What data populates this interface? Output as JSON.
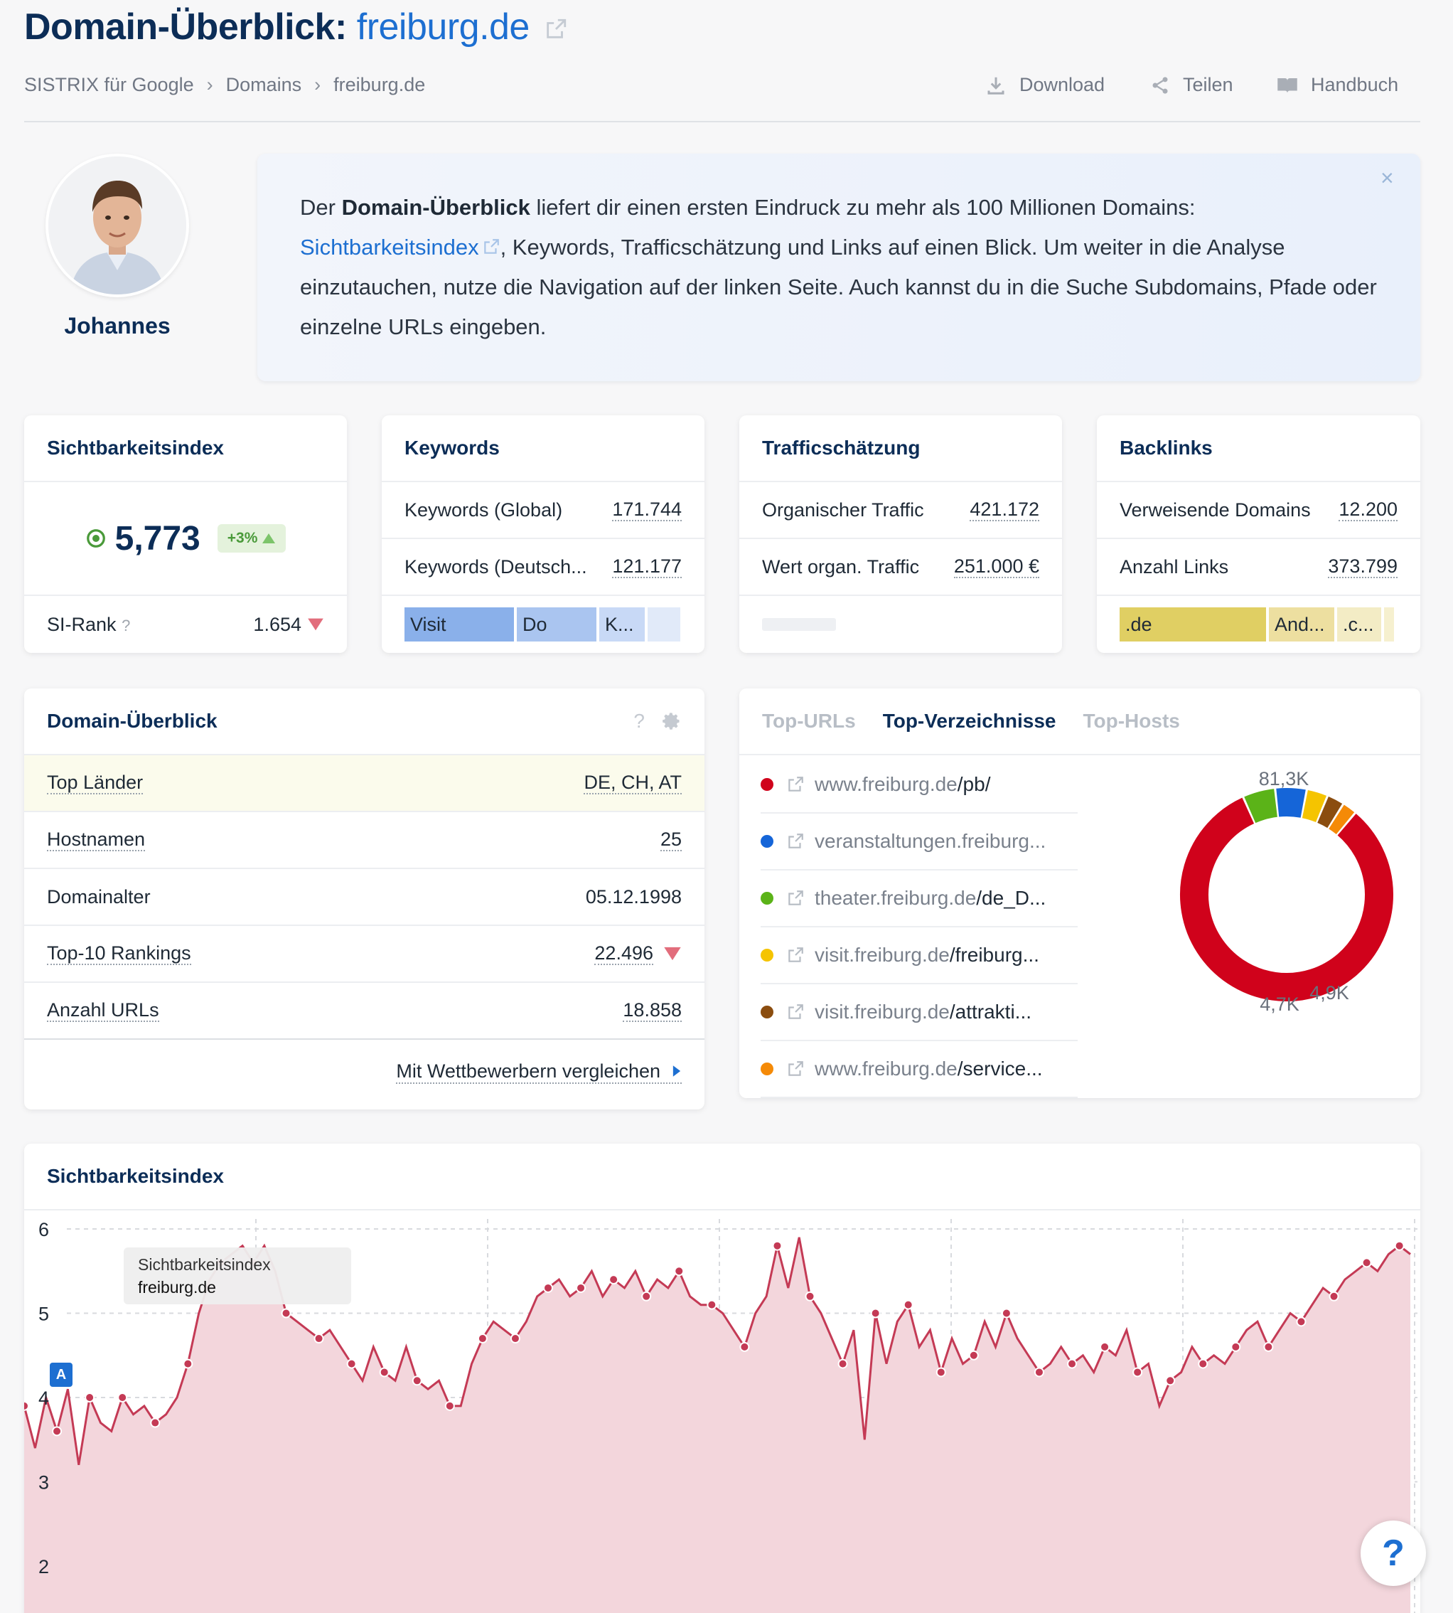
{
  "header": {
    "title_prefix": "Domain-Überblick:",
    "title_domain": "freiburg.de",
    "breadcrumbs": [
      "SISTRIX für Google",
      "Domains",
      "freiburg.de"
    ],
    "actions": {
      "download": "Download",
      "share": "Teilen",
      "manual": "Handbuch"
    }
  },
  "intro": {
    "person": "Johannes",
    "text_1": "Der ",
    "text_bold": "Domain-Überblick",
    "text_2": " liefert dir einen ersten Eindruck zu mehr als 100 Millionen Domains: ",
    "link": "Sichtbarkeitsindex",
    "text_3": ", Keywords, Trafficschätzung und Links auf einen Blick. Um weiter in die Analyse einzutauchen, nutze die Navigation auf der linken Seite. Auch kannst du in die Suche Subdomains, Pfade oder einzelne URLs eingeben.",
    "close": "×"
  },
  "kpi": {
    "si": {
      "title": "Sichtbarkeitsindex",
      "value": "5,773",
      "change": "+3%",
      "rank_label": "SI-Rank",
      "rank_help": "?",
      "rank_value": "1.654"
    },
    "keywords": {
      "title": "Keywords",
      "rows": [
        {
          "label": "Keywords (Global)",
          "value": "171.744"
        },
        {
          "label": "Keywords (Deutsch...",
          "value": "121.177"
        }
      ],
      "segments": [
        "Visit",
        "Do",
        "K..."
      ]
    },
    "traffic": {
      "title": "Trafficschätzung",
      "rows": [
        {
          "label": "Organischer Traffic",
          "value": "421.172"
        },
        {
          "label": "Wert organ. Traffic",
          "value": "251.000 €"
        }
      ]
    },
    "backlinks": {
      "title": "Backlinks",
      "rows": [
        {
          "label": "Verweisende Domains",
          "value": "12.200"
        },
        {
          "label": "Anzahl Links",
          "value": "373.799"
        }
      ],
      "segments": [
        ".de",
        "And...",
        ".c..."
      ]
    }
  },
  "overview": {
    "title": "Domain-Überblick",
    "help": "?",
    "rows": [
      {
        "label": "Top Länder",
        "value": "DE, CH, AT"
      },
      {
        "label": "Hostnamen",
        "value": "25"
      },
      {
        "label": "Domainalter",
        "value": "05.12.1998"
      },
      {
        "label": "Top-10 Rankings",
        "value": "22.496"
      },
      {
        "label": "Anzahl URLs",
        "value": "18.858"
      }
    ],
    "compare": "Mit Wettbewerbern vergleichen"
  },
  "topdirs": {
    "tabs": [
      "Top-URLs",
      "Top-Verzeichnisse",
      "Top-Hosts"
    ],
    "rows": [
      {
        "host": "www.freiburg.de",
        "path": "/pb/",
        "color": "#d0021b"
      },
      {
        "host": "veranstaltungen.freiburg...",
        "path": "",
        "color": "#1565d8"
      },
      {
        "host": "theater.freiburg.de",
        "path": "/de_D...",
        "color": "#5bb318"
      },
      {
        "host": "visit.freiburg.de",
        "path": "/freiburg...",
        "color": "#f5c400"
      },
      {
        "host": "visit.freiburg.de",
        "path": "/attrakti...",
        "color": "#8b4d0f"
      },
      {
        "host": "www.freiburg.de",
        "path": "/service...",
        "color": "#f58a07"
      }
    ],
    "donut_labels": {
      "top": "81,3K",
      "a": "4,7K",
      "b": "4,9K"
    },
    "donut_values": [
      81.3,
      4.9,
      4.7,
      3.2,
      2.6,
      2.2
    ]
  },
  "si_chart": {
    "title": "Sichtbarkeitsindex",
    "tooltip_title": "Sichtbarkeitsindex",
    "tooltip_domain": "freiburg.de",
    "marker": "A",
    "help_button": "?"
  },
  "chart_data": {
    "type": "area",
    "title": "Sichtbarkeitsindex",
    "ylim": [
      1.5,
      6
    ],
    "yticks": [
      "6",
      "5",
      "4",
      "3",
      "2"
    ],
    "series": [
      {
        "name": "freiburg.de",
        "values": [
          3.9,
          3.4,
          4.0,
          3.6,
          4.1,
          3.2,
          4.0,
          3.7,
          3.6,
          4.0,
          3.8,
          3.9,
          3.7,
          3.8,
          4.0,
          4.4,
          5.0,
          5.4,
          5.6,
          5.7,
          5.8,
          5.6,
          5.8,
          5.5,
          5.0,
          4.9,
          4.8,
          4.7,
          4.8,
          4.6,
          4.4,
          4.2,
          4.6,
          4.3,
          4.2,
          4.6,
          4.2,
          4.1,
          4.2,
          3.9,
          3.9,
          4.4,
          4.7,
          4.9,
          4.8,
          4.7,
          4.9,
          5.2,
          5.3,
          5.4,
          5.2,
          5.3,
          5.5,
          5.2,
          5.4,
          5.3,
          5.5,
          5.2,
          5.4,
          5.3,
          5.5,
          5.2,
          5.1,
          5.1,
          5.0,
          4.8,
          4.6,
          5.0,
          5.2,
          5.8,
          5.3,
          5.9,
          5.2,
          5.0,
          4.7,
          4.4,
          4.8,
          3.5,
          5.0,
          4.4,
          4.9,
          5.1,
          4.6,
          4.8,
          4.3,
          4.7,
          4.4,
          4.5,
          4.9,
          4.6,
          5.0,
          4.7,
          4.5,
          4.3,
          4.4,
          4.6,
          4.4,
          4.5,
          4.3,
          4.6,
          4.5,
          4.8,
          4.3,
          4.4,
          3.9,
          4.2,
          4.3,
          4.6,
          4.4,
          4.5,
          4.4,
          4.6,
          4.8,
          4.9,
          4.6,
          4.8,
          5.0,
          4.9,
          5.1,
          5.3,
          5.2,
          5.4,
          5.5,
          5.6,
          5.5,
          5.7,
          5.8,
          5.7
        ]
      }
    ]
  }
}
